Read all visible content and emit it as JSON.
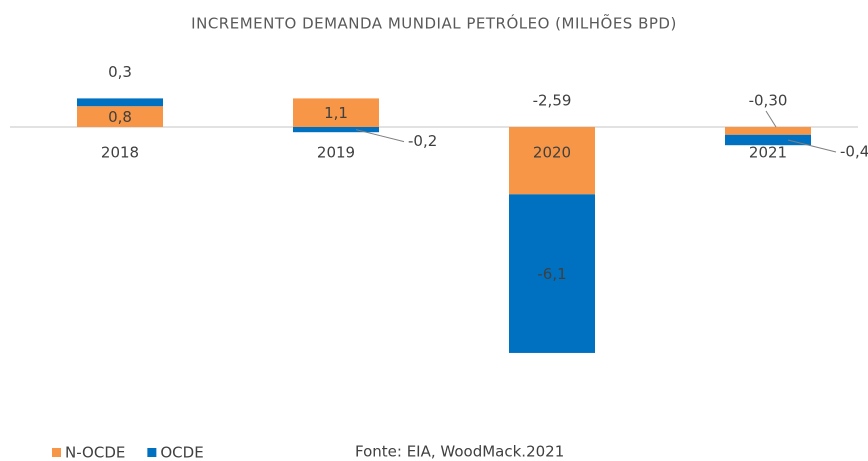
{
  "chart_data": {
    "type": "bar",
    "stacked": true,
    "title": "INCREMENTO DEMANDA MUNDIAL PETRÓLEO (MILHÕES BPD)",
    "annotations": [
      "Fonte: EIA, WoodMack.2021"
    ],
    "categories": [
      "2018",
      "2019",
      "2020",
      "2021"
    ],
    "series": [
      {
        "name": "N-OCDE",
        "color": "#f79646",
        "values": [
          0.8,
          1.1,
          -2.59,
          -0.3
        ],
        "value_labels": [
          "0,8",
          "1,1",
          "-2,59",
          "-0,30"
        ]
      },
      {
        "name": "OCDE",
        "color": "#0070c0",
        "values": [
          0.3,
          -0.2,
          -6.1,
          -0.4
        ],
        "value_labels": [
          "0,3",
          "-0,2",
          "-6,1",
          "-0,4"
        ]
      }
    ],
    "legend": "bottom-left"
  }
}
